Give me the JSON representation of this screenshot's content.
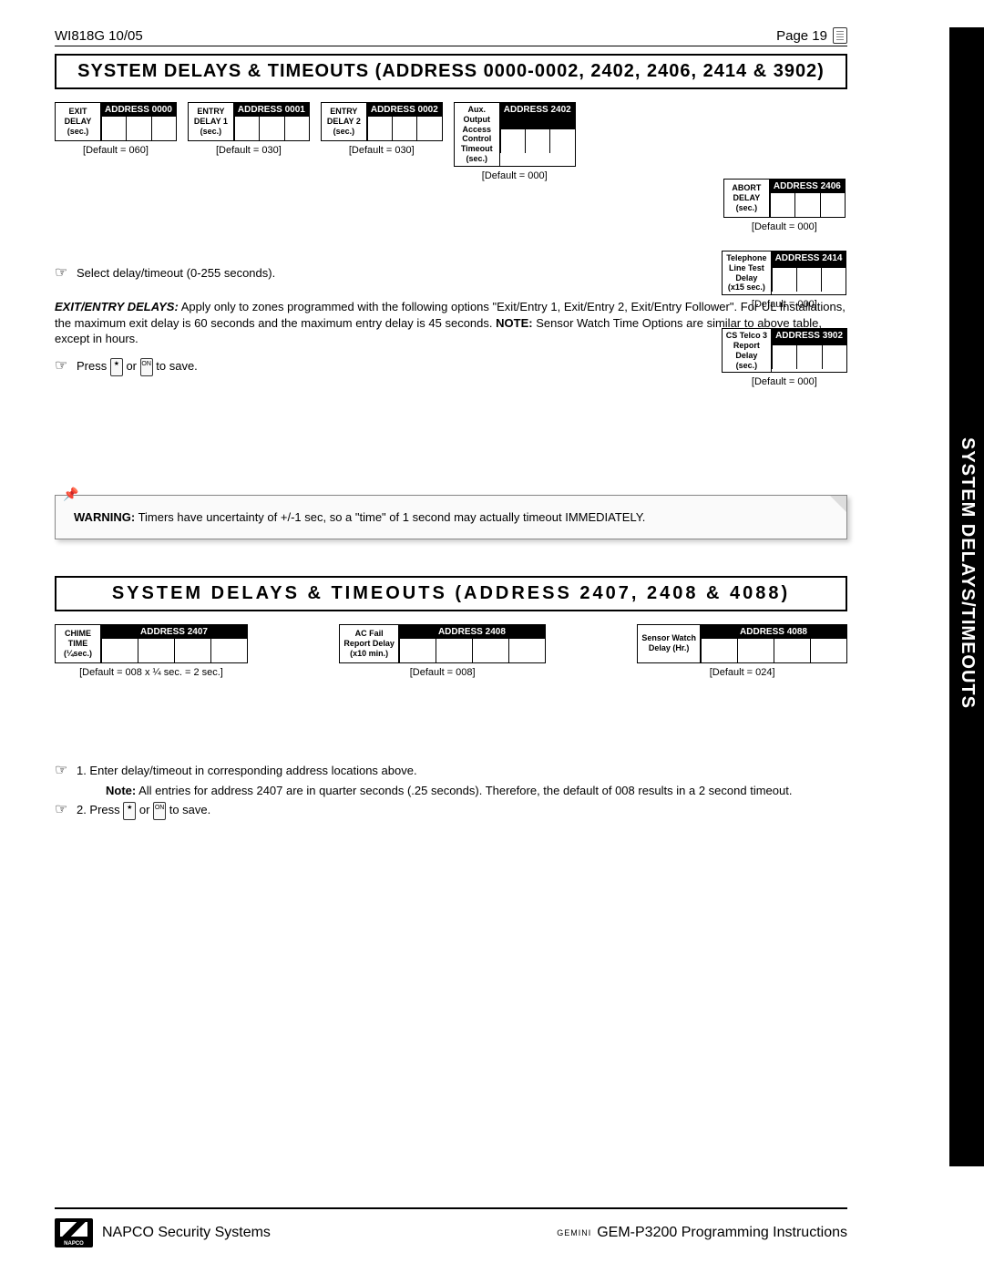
{
  "header": {
    "doc": "WI818G  10/05",
    "page": "Page 19"
  },
  "section1": {
    "title": "SYSTEM DELAYS & TIMEOUTS (ADDRESS 0000-0002, 2402, 2406, 2414 & 3902)",
    "boxes": [
      {
        "label": "EXIT\nDELAY\n(sec.)",
        "addr": "ADDRESS 0000",
        "default": "[Default = 060]"
      },
      {
        "label": "ENTRY\nDELAY 1\n(sec.)",
        "addr": "ADDRESS 0001",
        "default": "[Default = 030]"
      },
      {
        "label": "ENTRY\nDELAY 2\n(sec.)",
        "addr": "ADDRESS 0002",
        "default": "[Default = 030]"
      },
      {
        "label": "Aux.\nOutput\nAccess\nControl\nTimeout\n(sec.)",
        "addr": "ADDRESS 2402",
        "default": "[Default = 000]"
      }
    ],
    "right_boxes": [
      {
        "label": "ABORT\nDELAY\n(sec.)",
        "addr": "ADDRESS 2406",
        "default": "[Default = 000]"
      },
      {
        "label": "Telephone\nLine Test\nDelay\n(x15 sec.)",
        "addr": "ADDRESS 2414",
        "default": "[Default = 000]"
      },
      {
        "label": "CS Telco 3\nReport\nDelay\n(sec.)",
        "addr": "ADDRESS 3902",
        "default": "[Default = 000]"
      }
    ],
    "select_text": "Select delay/timeout (0-255 seconds).",
    "para_label": "EXIT/ENTRY DELAYS:",
    "para": "Apply only to zones programmed with the following options \"Exit/Entry 1, Exit/Entry 2, Exit/Entry Follower\".  For UL Installations, the maximum exit delay is 60 seconds and the maximum entry delay is 45 seconds.  ",
    "para_note_label": "NOTE:",
    "para_note": "Sensor Watch Time Options are similar to above table, except in hours.",
    "press_pre": "Press",
    "press_or": "or",
    "press_post": "to save."
  },
  "warning": {
    "label": "WARNING:",
    "text": "Timers have uncertainty of +/-1 sec, so a \"time\" of 1 second may actually timeout IMMEDIATELY."
  },
  "section2": {
    "title": "SYSTEM DELAYS & TIMEOUTS (ADDRESS 2407, 2408 & 4088)",
    "boxes": [
      {
        "label": "CHIME\nTIME\n(¼sec.)",
        "addr": "ADDRESS 2407",
        "default": "[Default = 008 x ¼ sec.  =  2 sec.]"
      },
      {
        "label": "AC Fail\nReport Delay\n(x10 min.)",
        "addr": "ADDRESS 2408",
        "default": "[Default = 008]"
      },
      {
        "label": "Sensor Watch\nDelay (Hr.)",
        "addr": "ADDRESS 4088",
        "default": "[Default = 024]"
      }
    ],
    "instr1": "1. Enter delay/timeout in corresponding address locations above.",
    "instr_note_label": "Note:",
    "instr_note": "All entries for address 2407 are in quarter seconds (.25 seconds).  Therefore, the default of 008 results in a 2 second timeout.",
    "instr2_pre": "2. Press",
    "instr2_or": "or",
    "instr2_post": "to save."
  },
  "side_tab": "SYSTEM DELAYS/TIMEOUTS",
  "footer": {
    "left": "NAPCO Security Systems",
    "right": "GEM-P3200 Programming Instructions",
    "logo_sub": "NAPCO",
    "gemini": "GEMINI"
  }
}
